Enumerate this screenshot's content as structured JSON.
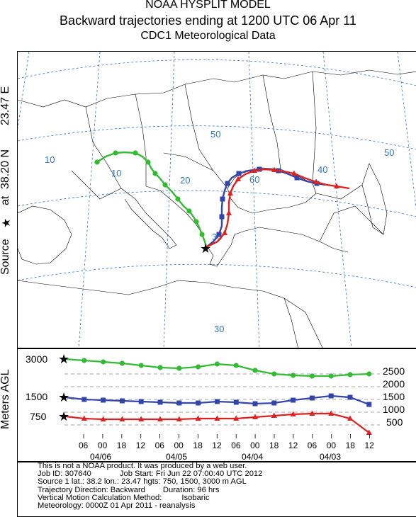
{
  "header": {
    "title_line1": "NOAA HYSPLIT MODEL",
    "title_line2": "Backward trajectories ending at 1200 UTC 06 Apr 11",
    "title_line3": "CDC1 Meteorological Data"
  },
  "side_label": {
    "source_text": "Source",
    "star_glyph": "★",
    "at_text": "at",
    "lat": "38.20 N",
    "lon": "23.47 E"
  },
  "profile": {
    "ylabel": "Meters AGL",
    "left_ticks": [
      "3000",
      "1500",
      "750"
    ],
    "right_ticks": [
      "2500",
      "2000",
      "1500",
      "1000",
      "500"
    ],
    "hour_ticks": [
      "06",
      "00",
      "18",
      "12",
      "06",
      "00",
      "18",
      "12",
      "06",
      "00",
      "18",
      "12",
      "06",
      "00",
      "18",
      "12"
    ],
    "date_ticks": [
      "04/06",
      "04/05",
      "04/04",
      "04/03"
    ]
  },
  "map": {
    "grid_labels": [
      "10",
      "10",
      "20",
      "30",
      "40",
      "50",
      "50",
      "60",
      "30"
    ]
  },
  "colors": {
    "green": "#33bb33",
    "blue": "#3344aa",
    "red": "#dd2222",
    "grid": "#3377bb",
    "coast": "#000000"
  },
  "info": {
    "line1": "This is not a NOAA product. It was produced by a web user.",
    "line2a": "Job ID: 307640",
    "line2b": "Job Start: Fri Jun 22 07:00:40 UTC 2012",
    "line3": "Source 1 lat.: 38.2  lon.: 23.47  hgts: 750, 1500, 3000 m AGL",
    "line4a": "Trajectory Direction: Backward",
    "line4b": "Duration: 96 hrs",
    "line5a": "Vertical Motion Calculation Method:",
    "line5b": "Isobaric",
    "line6": "Meteorology: 0000Z 01 Apr 2011 - reanalysis"
  }
}
